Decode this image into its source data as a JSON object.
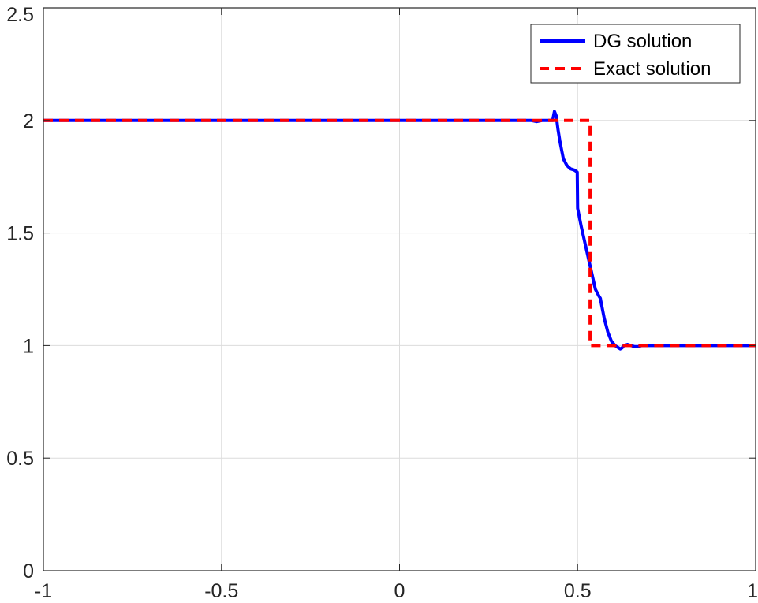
{
  "chart_data": {
    "type": "line",
    "title": "",
    "xlabel": "",
    "ylabel": "",
    "xlim": [
      -1,
      1
    ],
    "ylim": [
      0,
      2.5
    ],
    "xticks": [
      -1,
      -0.5,
      0,
      0.5,
      1
    ],
    "yticks": [
      0,
      0.5,
      1,
      1.5,
      2,
      2.5
    ],
    "xtick_labels": [
      "-1",
      "-0.5",
      "0",
      "0.5",
      "1"
    ],
    "ytick_labels": [
      "0",
      "0.5",
      "1",
      "1.5",
      "2",
      "2.5"
    ],
    "grid": true,
    "legend_position": "top-right",
    "series": [
      {
        "name": "DG solution",
        "color": "#0000ff",
        "style": "solid",
        "x": [
          -1,
          0.37,
          0.385,
          0.4,
          0.41,
          0.42,
          0.43,
          0.435,
          0.44,
          0.445,
          0.45,
          0.455,
          0.46,
          0.47,
          0.48,
          0.49,
          0.495,
          0.499,
          0.5,
          0.51,
          0.52,
          0.53,
          0.54,
          0.55,
          0.56,
          0.564,
          0.565,
          0.575,
          0.585,
          0.595,
          0.605,
          0.615,
          0.62,
          0.625,
          0.63,
          0.64,
          0.65,
          0.66,
          0.67,
          0.68,
          0.69,
          0.7,
          0.71,
          0.72,
          0.73,
          0.75,
          0.8,
          1
        ],
        "y": [
          2.0,
          2.0,
          1.995,
          2.0,
          2.0,
          2.0,
          2.0,
          2.04,
          2.02,
          1.96,
          1.91,
          1.87,
          1.83,
          1.8,
          1.785,
          1.78,
          1.775,
          1.77,
          1.61,
          1.53,
          1.46,
          1.39,
          1.32,
          1.25,
          1.22,
          1.21,
          1.2,
          1.12,
          1.06,
          1.02,
          1.0,
          0.99,
          0.985,
          0.99,
          1.0,
          1.005,
          1.0,
          0.995,
          0.995,
          1.0,
          1.0,
          1.0,
          1.0,
          1.0,
          1.0,
          1.0,
          1.0,
          1.0
        ]
      },
      {
        "name": "Exact solution",
        "color": "#ff0000",
        "style": "dashed",
        "x": [
          -1,
          0.535,
          0.535,
          1
        ],
        "y": [
          2.0,
          2.0,
          1.0,
          1.0
        ]
      }
    ]
  }
}
